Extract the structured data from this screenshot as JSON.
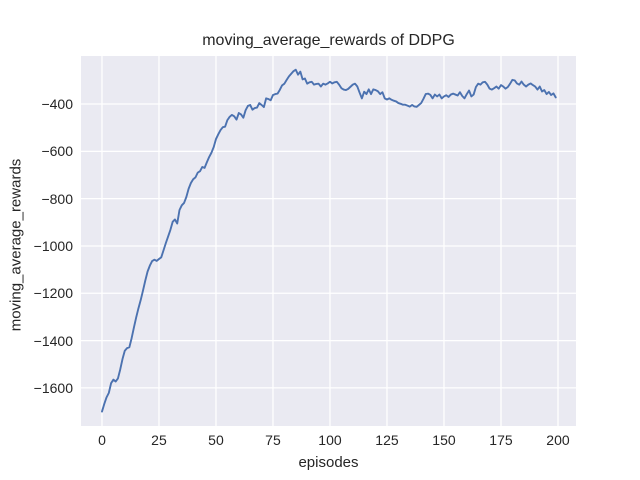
{
  "figure": {
    "background": "#ffffff"
  },
  "chart_data": {
    "type": "line",
    "title": "moving_average_rewards of DDPG",
    "xlabel": "episodes",
    "ylabel": "moving_average_rewards",
    "style": "seaborn-darkgrid",
    "plot_bg": "#eaeaf2",
    "grid_color": "#ffffff",
    "grid": true,
    "legend_position": "none",
    "line_color": "#4c72b0",
    "line_width": 1.9,
    "text_color": "#262626",
    "xticks": [
      0,
      25,
      50,
      75,
      100,
      125,
      150,
      175,
      200
    ],
    "yticks": [
      -400,
      -600,
      -800,
      -1000,
      -1200,
      -1400,
      -1600
    ],
    "xlim": [
      -9.2,
      207.9
    ],
    "ylim": [
      -1761,
      -197
    ],
    "x_start": 0,
    "x_step": 1,
    "values": [
      -1700,
      -1668,
      -1640,
      -1621,
      -1580,
      -1565,
      -1573,
      -1560,
      -1522,
      -1478,
      -1443,
      -1432,
      -1428,
      -1390,
      -1345,
      -1302,
      -1263,
      -1228,
      -1188,
      -1146,
      -1108,
      -1083,
      -1064,
      -1058,
      -1063,
      -1055,
      -1048,
      -1018,
      -988,
      -960,
      -932,
      -898,
      -888,
      -905,
      -848,
      -828,
      -818,
      -793,
      -758,
      -734,
      -718,
      -710,
      -690,
      -684,
      -666,
      -670,
      -646,
      -624,
      -606,
      -582,
      -548,
      -528,
      -510,
      -498,
      -496,
      -468,
      -454,
      -446,
      -452,
      -466,
      -438,
      -444,
      -458,
      -426,
      -408,
      -404,
      -424,
      -417,
      -415,
      -396,
      -404,
      -413,
      -376,
      -379,
      -384,
      -362,
      -358,
      -356,
      -340,
      -321,
      -314,
      -298,
      -283,
      -272,
      -261,
      -255,
      -276,
      -263,
      -296,
      -292,
      -314,
      -308,
      -306,
      -318,
      -315,
      -314,
      -326,
      -314,
      -318,
      -313,
      -306,
      -313,
      -308,
      -306,
      -318,
      -333,
      -339,
      -341,
      -336,
      -327,
      -318,
      -314,
      -326,
      -352,
      -376,
      -348,
      -358,
      -338,
      -358,
      -338,
      -341,
      -346,
      -358,
      -350,
      -376,
      -381,
      -376,
      -382,
      -386,
      -389,
      -396,
      -399,
      -403,
      -403,
      -407,
      -411,
      -404,
      -410,
      -412,
      -404,
      -396,
      -378,
      -358,
      -356,
      -361,
      -376,
      -360,
      -368,
      -360,
      -376,
      -368,
      -363,
      -370,
      -360,
      -356,
      -360,
      -364,
      -350,
      -366,
      -376,
      -358,
      -343,
      -368,
      -360,
      -328,
      -314,
      -318,
      -308,
      -306,
      -318,
      -335,
      -339,
      -333,
      -326,
      -335,
      -320,
      -326,
      -335,
      -328,
      -314,
      -298,
      -300,
      -313,
      -318,
      -305,
      -318,
      -326,
      -318,
      -313,
      -320,
      -326,
      -339,
      -326,
      -347,
      -341,
      -358,
      -349,
      -362,
      -355,
      -372
    ]
  }
}
